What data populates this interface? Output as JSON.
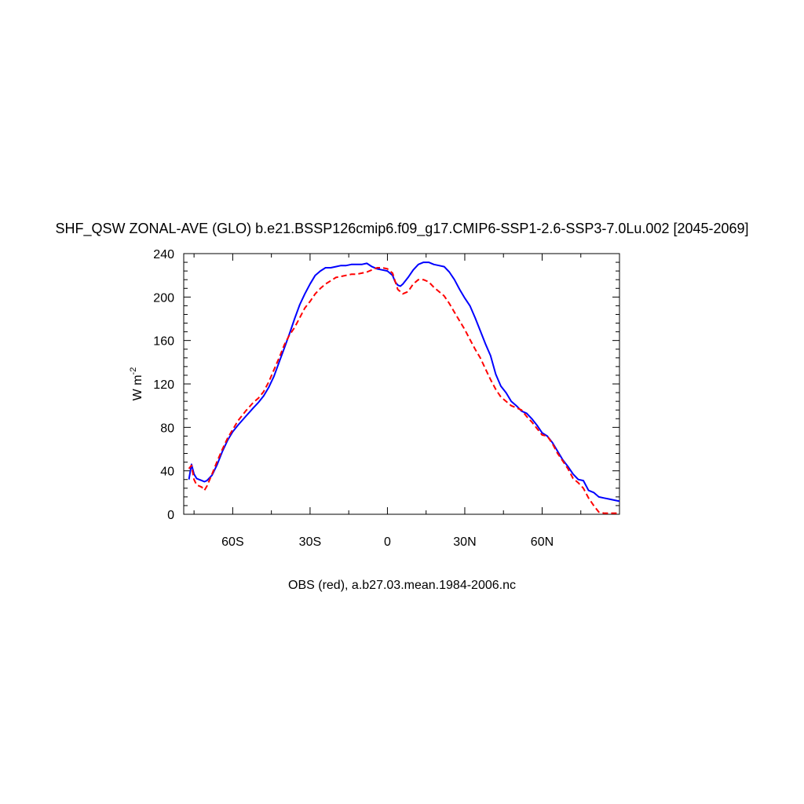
{
  "chart_data": {
    "type": "line",
    "title": "SHF_QSW ZONAL-AVE (GLO) b.e21.BSSP126cmip6.f09_g17.CMIP6-SSP1-2.6-SSP3-7.0Lu.002 [2045-2069]",
    "xlabel": "",
    "ylabel": "W m",
    "ylabel_superscript": "-2",
    "caption": "OBS (red), a.b27.03.mean.1984-2006.nc",
    "xlim": [
      -79,
      90
    ],
    "ylim": [
      0,
      240
    ],
    "x_ticks": [
      {
        "value": -60,
        "label": "60S"
      },
      {
        "value": -30,
        "label": "30S"
      },
      {
        "value": 0,
        "label": "0"
      },
      {
        "value": 30,
        "label": "30N"
      },
      {
        "value": 60,
        "label": "60N"
      }
    ],
    "y_ticks": [
      0,
      40,
      80,
      120,
      160,
      200,
      240
    ],
    "grid": false,
    "series": [
      {
        "color": "#0000ff",
        "dash": "solid",
        "x": [
          -77,
          -76,
          -75,
          -74,
          -72,
          -71,
          -70,
          -68,
          -66,
          -64,
          -62,
          -60,
          -58,
          -55,
          -52,
          -50,
          -48,
          -46,
          -44,
          -42,
          -40,
          -38,
          -36,
          -34,
          -32,
          -30,
          -28,
          -26,
          -24,
          -22,
          -20,
          -18,
          -16,
          -14,
          -12,
          -10,
          -8,
          -6,
          -4,
          -2,
          0,
          2,
          3,
          4,
          5,
          6,
          8,
          10,
          12,
          14,
          16,
          18,
          20,
          22,
          24,
          26,
          28,
          30,
          32,
          34,
          36,
          38,
          40,
          42,
          44,
          46,
          48,
          50,
          52,
          54,
          56,
          58,
          60,
          62,
          64,
          66,
          68,
          70,
          72,
          74,
          76,
          78,
          80,
          82,
          84,
          86,
          88,
          90
        ],
        "y": [
          32,
          46,
          37,
          33,
          31,
          30,
          31,
          36,
          46,
          58,
          68,
          76,
          82,
          90,
          98,
          103,
          109,
          117,
          127,
          140,
          153,
          166,
          180,
          193,
          203,
          212,
          220,
          224,
          227,
          227,
          228,
          229,
          229,
          230,
          230,
          230,
          231,
          228,
          226,
          225,
          224,
          220,
          214,
          211,
          210,
          212,
          218,
          225,
          230,
          232,
          232,
          230,
          229,
          228,
          223,
          216,
          207,
          199,
          192,
          181,
          169,
          157,
          146,
          129,
          118,
          112,
          104,
          100,
          95,
          93,
          88,
          82,
          75,
          72,
          66,
          58,
          50,
          44,
          37,
          32,
          31,
          22,
          20,
          16,
          15,
          14,
          13,
          12
        ]
      },
      {
        "color": "#ff0000",
        "dash": "dashed",
        "x": [
          -77,
          -76,
          -75,
          -74,
          -72,
          -71,
          -70,
          -68,
          -66,
          -64,
          -62,
          -60,
          -58,
          -55,
          -52,
          -50,
          -48,
          -46,
          -44,
          -42,
          -40,
          -38,
          -36,
          -34,
          -32,
          -30,
          -28,
          -26,
          -24,
          -22,
          -20,
          -18,
          -16,
          -14,
          -12,
          -10,
          -8,
          -6,
          -4,
          -2,
          0,
          2,
          4,
          6,
          8,
          10,
          12,
          14,
          16,
          18,
          20,
          22,
          24,
          26,
          28,
          30,
          32,
          34,
          36,
          38,
          40,
          42,
          44,
          46,
          48,
          50,
          52,
          54,
          56,
          58,
          60,
          62,
          64,
          66,
          68,
          70,
          72,
          74,
          76,
          78,
          80,
          82,
          84,
          86,
          88,
          90
        ],
        "y": [
          42,
          45,
          32,
          27,
          25,
          22,
          26,
          37,
          49,
          60,
          70,
          78,
          86,
          95,
          103,
          107,
          113,
          122,
          133,
          144,
          156,
          165,
          172,
          181,
          190,
          196,
          203,
          208,
          212,
          215,
          218,
          219,
          220,
          221,
          221,
          222,
          223,
          225,
          227,
          227,
          226,
          222,
          207,
          203,
          205,
          212,
          216,
          216,
          214,
          209,
          205,
          201,
          194,
          186,
          178,
          170,
          161,
          152,
          144,
          134,
          124,
          115,
          108,
          104,
          100,
          98,
          96,
          90,
          85,
          79,
          73,
          72,
          65,
          56,
          49,
          42,
          33,
          29,
          24,
          15,
          8,
          2,
          1,
          1,
          1,
          1
        ]
      }
    ]
  }
}
